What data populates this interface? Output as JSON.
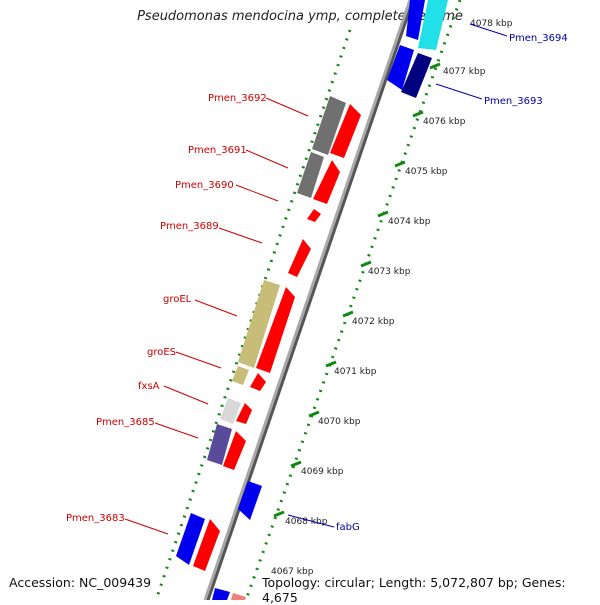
{
  "title": "Pseudomonas mendocina ymp, complete genome",
  "footer": {
    "accession": "Accession: NC_009439",
    "topology": "Topology: circular; Length: 5,072,807 bp; Genes: 4,675"
  },
  "ticks": [
    "4078 kbp",
    "4077 kbp",
    "4076 kbp",
    "4075 kbp",
    "4074 kbp",
    "4073 kbp",
    "4072 kbp",
    "4071 kbp",
    "4070 kbp",
    "4069 kbp",
    "4068 kbp",
    "4067 kbp"
  ],
  "gene_labels": {
    "pmen_3694": "Pmen_3694",
    "pmen_3693": "Pmen_3693",
    "pmen_3692": "Pmen_3692",
    "pmen_3691": "Pmen_3691",
    "pmen_3690": "Pmen_3690",
    "pmen_3689": "Pmen_3689",
    "groEL": "groEL",
    "groES": "groES",
    "fxsA": "fxsA",
    "pmen_3685": "Pmen_3685",
    "pmen_3683": "Pmen_3683",
    "fabG": "fabG"
  },
  "colors": {
    "forward_cds": "#ff0000",
    "reverse_cds": "#0000ee",
    "dark_gray": "#707070",
    "olive": "#c8bd78",
    "purple": "#5a4a9a",
    "cyan": "#22e0e8",
    "navy": "#000080",
    "tick_green": "#118811"
  }
}
